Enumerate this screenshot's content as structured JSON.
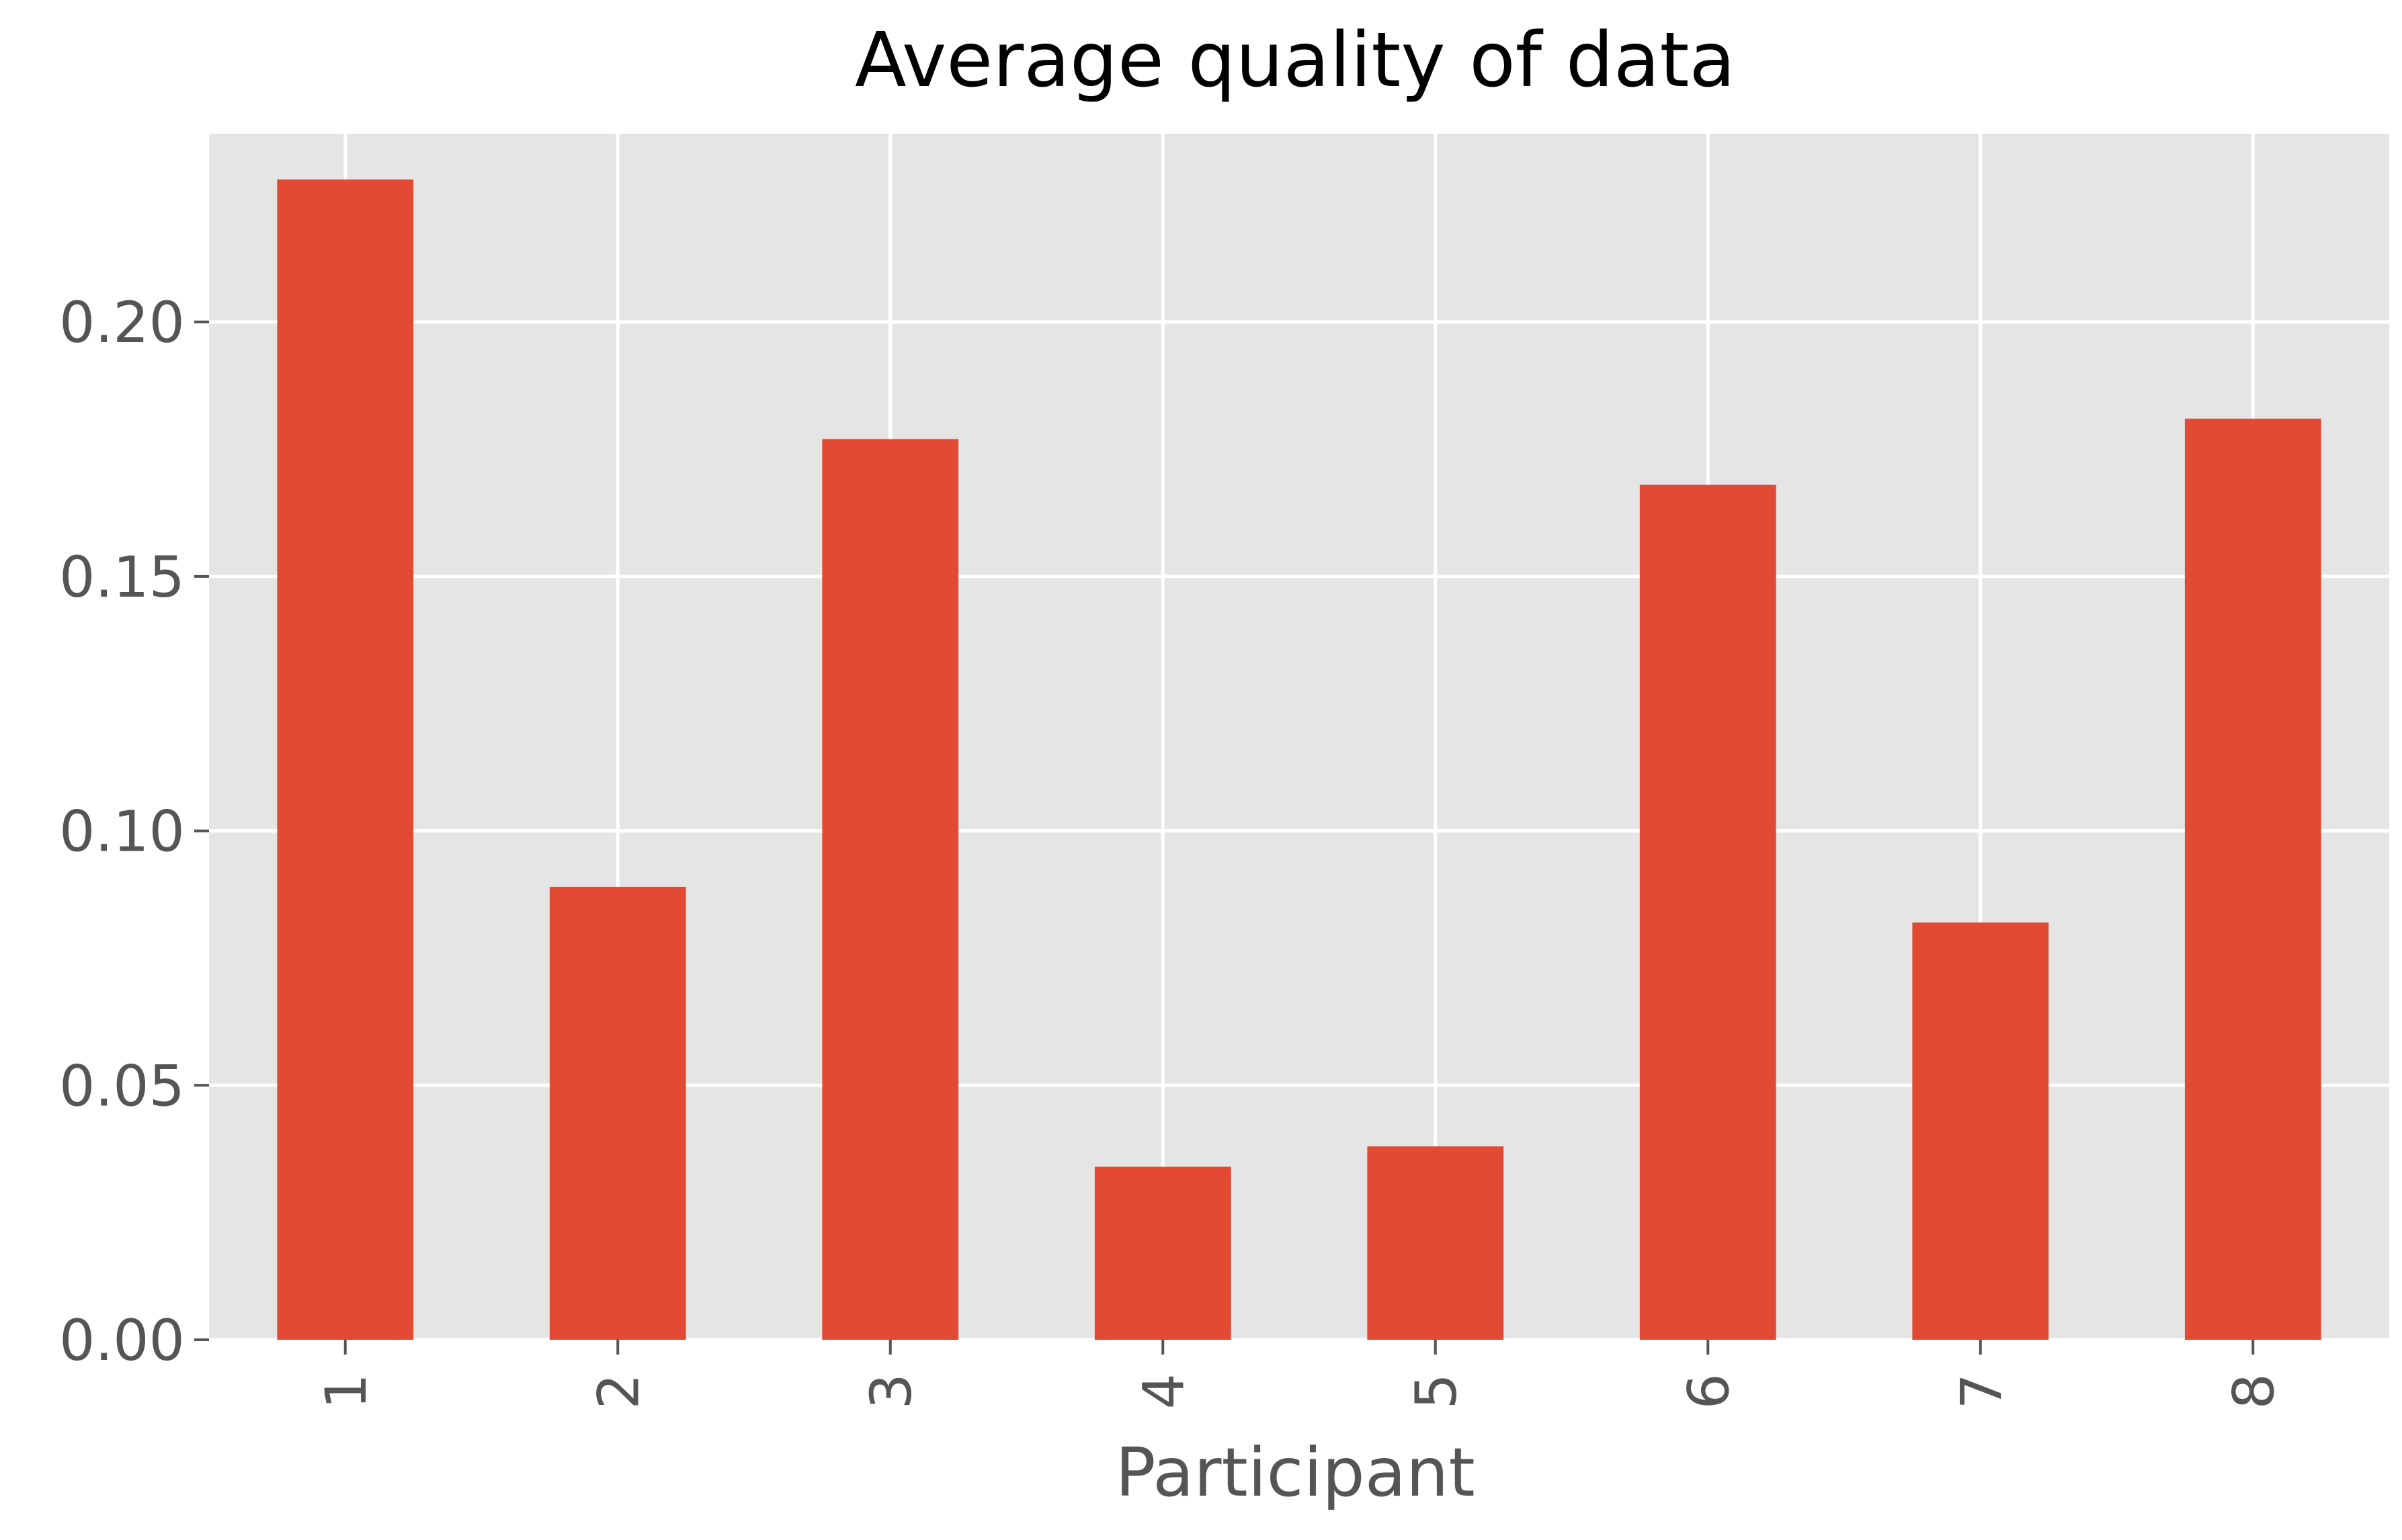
{
  "chart_data": {
    "type": "bar",
    "title": "Average quality of data",
    "xlabel": "Participant",
    "ylabel": "",
    "categories": [
      "1",
      "2",
      "3",
      "4",
      "5",
      "6",
      "7",
      "8"
    ],
    "values": [
      0.228,
      0.089,
      0.177,
      0.034,
      0.038,
      0.168,
      0.082,
      0.181
    ],
    "ylim": [
      0,
      0.237
    ],
    "yticks": [
      0.0,
      0.05,
      0.1,
      0.15,
      0.2
    ],
    "ytick_labels": [
      "0.00",
      "0.05",
      "0.10",
      "0.15",
      "0.20"
    ],
    "grid": true,
    "legend": "none",
    "colors": {
      "bar": "#E24A33",
      "plot_background": "#E5E5E5",
      "grid": "#FFFFFF",
      "text": "#555555",
      "title": "#000000"
    }
  }
}
